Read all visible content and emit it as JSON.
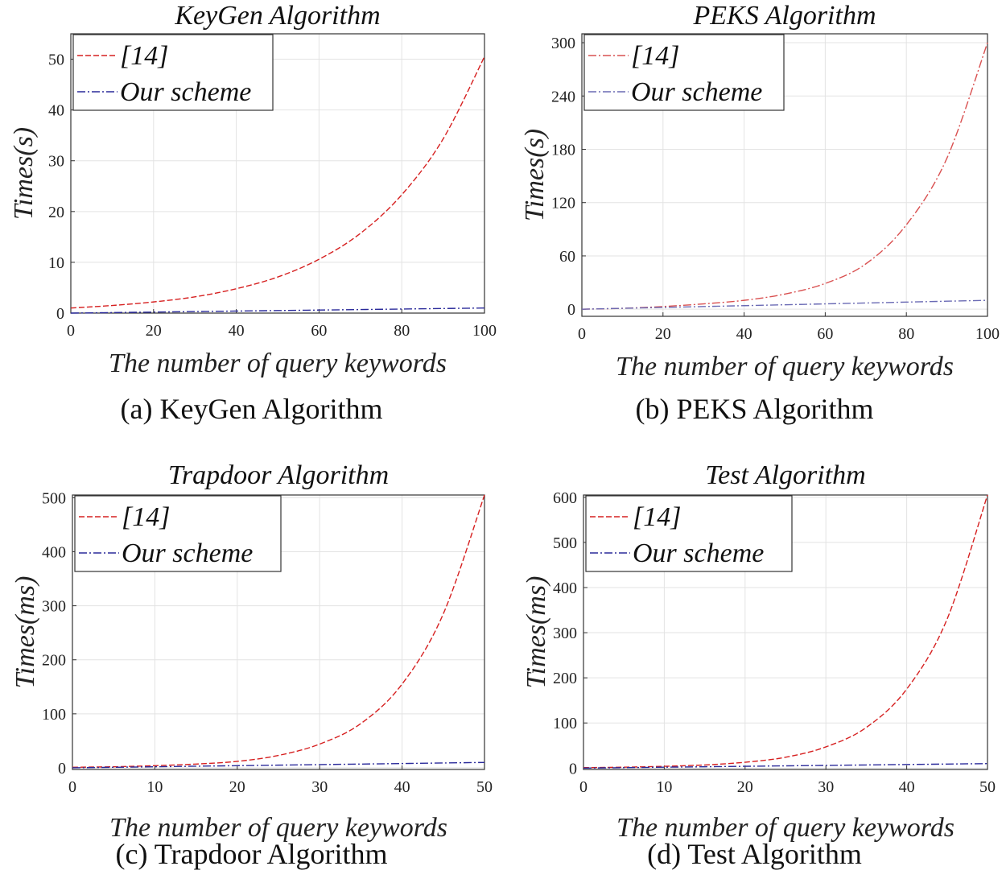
{
  "chart_data": [
    {
      "type": "line",
      "title": "KeyGen Algorithm",
      "caption": "(a) KeyGen Algorithm",
      "xlabel": "The number of query keywords",
      "ylabel": "Times(s)",
      "xlim": [
        0,
        100
      ],
      "ylim": [
        0,
        55
      ],
      "xticks": [
        0,
        20,
        40,
        60,
        80,
        100
      ],
      "yticks": [
        0,
        10,
        20,
        30,
        40,
        50
      ],
      "grid": true,
      "legend": "top-left",
      "x": [
        0,
        10,
        20,
        30,
        40,
        50,
        60,
        70,
        80,
        90,
        100
      ],
      "series": [
        {
          "name": "[14]",
          "color": "#d62020",
          "dash": "dash",
          "values": [
            1.0,
            1.5,
            2.2,
            3.2,
            4.8,
            7.1,
            10.6,
            15.7,
            23.3,
            34.3,
            50.5
          ]
        },
        {
          "name": "Our scheme",
          "color": "#2a2a9a",
          "dash": "dashdot",
          "values": [
            0.0,
            0.1,
            0.2,
            0.3,
            0.4,
            0.5,
            0.6,
            0.7,
            0.8,
            0.9,
            1.0
          ]
        }
      ]
    },
    {
      "type": "line",
      "title": "PEKS Algorithm",
      "caption": "(b) PEKS Algorithm",
      "xlabel": "The number of query keywords",
      "ylabel": "Times(s)",
      "xlim": [
        0,
        100
      ],
      "ylim": [
        -8,
        310
      ],
      "xticks": [
        0,
        20,
        40,
        60,
        80,
        100
      ],
      "yticks": [
        0,
        60,
        120,
        180,
        240,
        300
      ],
      "grid": true,
      "legend": "top-left",
      "x": [
        0,
        10,
        20,
        30,
        40,
        50,
        60,
        70,
        80,
        90,
        100
      ],
      "series": [
        {
          "name": "[14]",
          "color": "#d95050",
          "dash": "dashdot",
          "values": [
            0,
            1,
            3,
            6,
            10,
            17,
            29,
            51,
            95,
            170,
            300
          ]
        },
        {
          "name": "Our scheme",
          "color": "#6a6ab4",
          "dash": "dashdot",
          "values": [
            0,
            1,
            2,
            3,
            4,
            5,
            6,
            7,
            8,
            9,
            10
          ]
        }
      ]
    },
    {
      "type": "line",
      "title": "Trapdoor Algorithm",
      "caption": "(c) Trapdoor Algorithm",
      "xlabel": "The number of query keywords",
      "ylabel": "Times(ms)",
      "xlim": [
        0,
        50
      ],
      "ylim": [
        -3,
        505
      ],
      "xticks": [
        0,
        10,
        20,
        30,
        40,
        50
      ],
      "yticks": [
        0,
        100,
        200,
        300,
        400,
        500
      ],
      "grid": true,
      "legend": "top-left",
      "x": [
        0,
        5,
        10,
        15,
        20,
        25,
        30,
        35,
        40,
        45,
        50
      ],
      "series": [
        {
          "name": "[14]",
          "color": "#d62020",
          "dash": "dash",
          "values": [
            1,
            2,
            4,
            7,
            12,
            23,
            44,
            82,
            155,
            285,
            505
          ]
        },
        {
          "name": "Our scheme",
          "color": "#2a2a9a",
          "dash": "dashdot",
          "values": [
            0,
            1,
            2,
            3,
            4,
            5,
            6,
            7,
            8,
            9,
            10
          ]
        }
      ]
    },
    {
      "type": "line",
      "title": "Test Algorithm",
      "caption": "(d) Test Algorithm",
      "xlabel": "The number of query keywords",
      "ylabel": "Times(ms)",
      "xlim": [
        0,
        50
      ],
      "ylim": [
        -3,
        605
      ],
      "xticks": [
        0,
        10,
        20,
        30,
        40,
        50
      ],
      "yticks": [
        0,
        100,
        200,
        300,
        400,
        500,
        600
      ],
      "grid": true,
      "legend": "top-left",
      "x": [
        0,
        5,
        10,
        15,
        20,
        25,
        30,
        35,
        40,
        45,
        50
      ],
      "series": [
        {
          "name": "[14]",
          "color": "#d62020",
          "dash": "dash",
          "values": [
            1,
            2,
            4,
            7,
            13,
            24,
            47,
            90,
            175,
            330,
            605
          ]
        },
        {
          "name": "Our scheme",
          "color": "#2a2a9a",
          "dash": "dashdot",
          "values": [
            0,
            1,
            2,
            3,
            4,
            5,
            6,
            7,
            8,
            9,
            10
          ]
        }
      ]
    }
  ]
}
